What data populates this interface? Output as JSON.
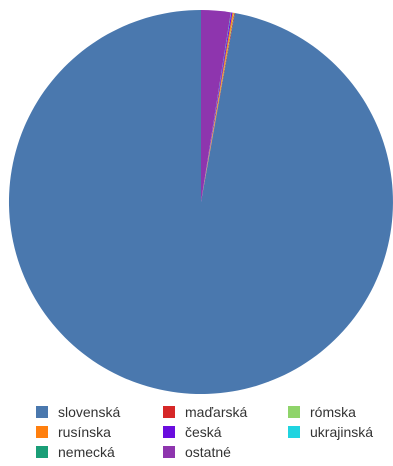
{
  "chart_data": {
    "type": "pie",
    "title": "",
    "slices": [
      {
        "label": "slovenská",
        "value": 97.18,
        "color": "#4a78ae"
      },
      {
        "label": "maďarská",
        "value": 0.05,
        "color": "#d62728"
      },
      {
        "label": "rómska",
        "value": 0.05,
        "color": "#8fd46a"
      },
      {
        "label": "rusínska",
        "value": 0.1,
        "color": "#ff7f0e"
      },
      {
        "label": "česká",
        "value": 0.1,
        "color": "#6a0dde"
      },
      {
        "label": "ukrajinská",
        "value": 0.02,
        "color": "#20d4e0"
      },
      {
        "label": "nemecká",
        "value": 0.02,
        "color": "#1a9e77"
      },
      {
        "label": "ostatné",
        "value": 2.48,
        "color": "#8e35ae"
      }
    ],
    "legend_position": "bottom",
    "start_angle": "top",
    "direction": "counterclockwise"
  }
}
